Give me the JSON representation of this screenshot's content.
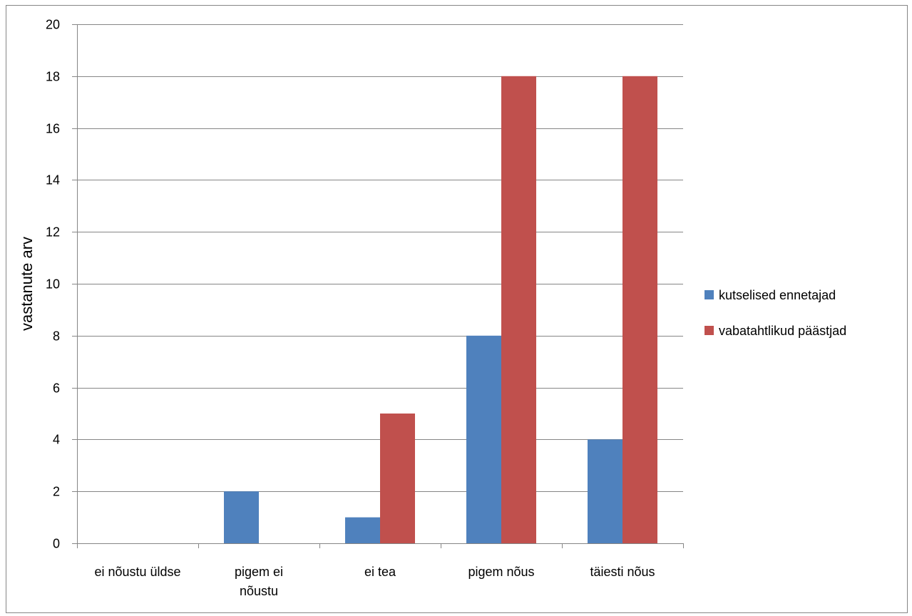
{
  "chart_data": {
    "type": "bar",
    "title": "",
    "xlabel": "",
    "ylabel": "vastanute arv",
    "ylim": [
      0,
      20
    ],
    "yticks": [
      0,
      2,
      4,
      6,
      8,
      10,
      12,
      14,
      16,
      18,
      20
    ],
    "grid": true,
    "legend_position": "right",
    "categories": [
      [
        "ei nõustu üldse"
      ],
      [
        "pigem ei",
        "nõustu"
      ],
      [
        "ei tea"
      ],
      [
        "pigem nõus"
      ],
      [
        "täiesti nõus"
      ]
    ],
    "series": [
      {
        "name": "kutselised ennetajad",
        "color": "#4F81BD",
        "values": [
          0,
          2,
          1,
          8,
          4
        ]
      },
      {
        "name": "vabatahtlikud päästjad",
        "color": "#C0504D",
        "values": [
          0,
          0,
          5,
          18,
          18
        ]
      }
    ]
  }
}
